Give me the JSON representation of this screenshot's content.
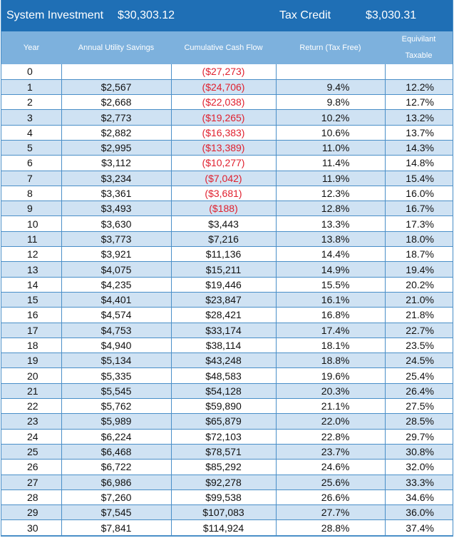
{
  "header": {
    "investment_label": "System Investment",
    "investment_value": "$30,303.12",
    "credit_label": "Tax Credit",
    "credit_value": "$3,030.31"
  },
  "columns": {
    "year": "Year",
    "savings": "Annual Utility Savings",
    "cash": "Cumulative Cash Flow",
    "return": "Return (Tax Free)",
    "equiv_line1": "Equivilant",
    "equiv_line2": "Taxable"
  },
  "colors": {
    "header_bar": "#1f6fb5",
    "column_header": "#7db1dd",
    "band": "#cfe2f3",
    "negative": "#e0202e"
  },
  "rows": [
    {
      "year": "0",
      "savings": "",
      "cash": "($27,273)",
      "negative": true,
      "ret": "",
      "eq": ""
    },
    {
      "year": "1",
      "savings": "$2,567",
      "cash": "($24,706)",
      "negative": true,
      "ret": "9.4%",
      "eq": "12.2%"
    },
    {
      "year": "2",
      "savings": "$2,668",
      "cash": "($22,038)",
      "negative": true,
      "ret": "9.8%",
      "eq": "12.7%"
    },
    {
      "year": "3",
      "savings": "$2,773",
      "cash": "($19,265)",
      "negative": true,
      "ret": "10.2%",
      "eq": "13.2%"
    },
    {
      "year": "4",
      "savings": "$2,882",
      "cash": "($16,383)",
      "negative": true,
      "ret": "10.6%",
      "eq": "13.7%"
    },
    {
      "year": "5",
      "savings": "$2,995",
      "cash": "($13,389)",
      "negative": true,
      "ret": "11.0%",
      "eq": "14.3%"
    },
    {
      "year": "6",
      "savings": "$3,112",
      "cash": "($10,277)",
      "negative": true,
      "ret": "11.4%",
      "eq": "14.8%"
    },
    {
      "year": "7",
      "savings": "$3,234",
      "cash": "($7,042)",
      "negative": true,
      "ret": "11.9%",
      "eq": "15.4%"
    },
    {
      "year": "8",
      "savings": "$3,361",
      "cash": "($3,681)",
      "negative": true,
      "ret": "12.3%",
      "eq": "16.0%"
    },
    {
      "year": "9",
      "savings": "$3,493",
      "cash": "($188)",
      "negative": true,
      "ret": "12.8%",
      "eq": "16.7%"
    },
    {
      "year": "10",
      "savings": "$3,630",
      "cash": "$3,443",
      "negative": false,
      "ret": "13.3%",
      "eq": "17.3%"
    },
    {
      "year": "11",
      "savings": "$3,773",
      "cash": "$7,216",
      "negative": false,
      "ret": "13.8%",
      "eq": "18.0%"
    },
    {
      "year": "12",
      "savings": "$3,921",
      "cash": "$11,136",
      "negative": false,
      "ret": "14.4%",
      "eq": "18.7%"
    },
    {
      "year": "13",
      "savings": "$4,075",
      "cash": "$15,211",
      "negative": false,
      "ret": "14.9%",
      "eq": "19.4%"
    },
    {
      "year": "14",
      "savings": "$4,235",
      "cash": "$19,446",
      "negative": false,
      "ret": "15.5%",
      "eq": "20.2%"
    },
    {
      "year": "15",
      "savings": "$4,401",
      "cash": "$23,847",
      "negative": false,
      "ret": "16.1%",
      "eq": "21.0%"
    },
    {
      "year": "16",
      "savings": "$4,574",
      "cash": "$28,421",
      "negative": false,
      "ret": "16.8%",
      "eq": "21.8%"
    },
    {
      "year": "17",
      "savings": "$4,753",
      "cash": "$33,174",
      "negative": false,
      "ret": "17.4%",
      "eq": "22.7%"
    },
    {
      "year": "18",
      "savings": "$4,940",
      "cash": "$38,114",
      "negative": false,
      "ret": "18.1%",
      "eq": "23.5%"
    },
    {
      "year": "19",
      "savings": "$5,134",
      "cash": "$43,248",
      "negative": false,
      "ret": "18.8%",
      "eq": "24.5%"
    },
    {
      "year": "20",
      "savings": "$5,335",
      "cash": "$48,583",
      "negative": false,
      "ret": "19.6%",
      "eq": "25.4%"
    },
    {
      "year": "21",
      "savings": "$5,545",
      "cash": "$54,128",
      "negative": false,
      "ret": "20.3%",
      "eq": "26.4%"
    },
    {
      "year": "22",
      "savings": "$5,762",
      "cash": "$59,890",
      "negative": false,
      "ret": "21.1%",
      "eq": "27.5%"
    },
    {
      "year": "23",
      "savings": "$5,989",
      "cash": "$65,879",
      "negative": false,
      "ret": "22.0%",
      "eq": "28.5%"
    },
    {
      "year": "24",
      "savings": "$6,224",
      "cash": "$72,103",
      "negative": false,
      "ret": "22.8%",
      "eq": "29.7%"
    },
    {
      "year": "25",
      "savings": "$6,468",
      "cash": "$78,571",
      "negative": false,
      "ret": "23.7%",
      "eq": "30.8%"
    },
    {
      "year": "26",
      "savings": "$6,722",
      "cash": "$85,292",
      "negative": false,
      "ret": "24.6%",
      "eq": "32.0%"
    },
    {
      "year": "27",
      "savings": "$6,986",
      "cash": "$92,278",
      "negative": false,
      "ret": "25.6%",
      "eq": "33.3%"
    },
    {
      "year": "28",
      "savings": "$7,260",
      "cash": "$99,538",
      "negative": false,
      "ret": "26.6%",
      "eq": "34.6%"
    },
    {
      "year": "29",
      "savings": "$7,545",
      "cash": "$107,083",
      "negative": false,
      "ret": "27.7%",
      "eq": "36.0%"
    },
    {
      "year": "30",
      "savings": "$7,841",
      "cash": "$114,924",
      "negative": false,
      "ret": "28.8%",
      "eq": "37.4%"
    }
  ]
}
